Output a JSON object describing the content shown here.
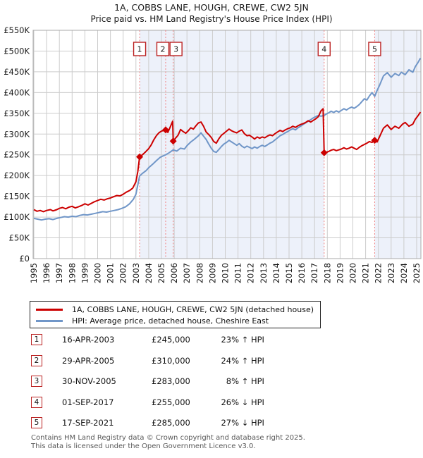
{
  "title": "1A, COBBS LANE, HOUGH, CREWE, CW2 5JN",
  "subtitle": "Price paid vs. HM Land Registry's House Price Index (HPI)",
  "chart_data": {
    "type": "line",
    "x_axis": {
      "start": 1995,
      "end": 2025,
      "tick_interval": 1,
      "labels_rotated": true
    },
    "y_axis": {
      "min": 0,
      "max": 550000,
      "tick_step": 50000,
      "labels": [
        "£0",
        "£50K",
        "£100K",
        "£150K",
        "£200K",
        "£250K",
        "£300K",
        "£350K",
        "£400K",
        "£450K",
        "£500K",
        "£550K"
      ]
    },
    "grid": true,
    "colors": {
      "property": "#cc0000",
      "hpi": "#7096c8",
      "shade": "#edf1fa",
      "grid": "#cccccc",
      "border": "#aaaaaa",
      "sale_line": "#f08080",
      "marker_box_border": "#bb2222"
    },
    "shaded_spans": [
      [
        2003.29,
        2017.75
      ],
      [
        2021.71,
        2025.3
      ]
    ],
    "sales": [
      {
        "n": "1",
        "year": 2003.29,
        "price_k": 245,
        "box_offset": 0
      },
      {
        "n": "2",
        "year": 2005.33,
        "price_k": 310,
        "box_offset": -4
      },
      {
        "n": "3",
        "year": 2005.92,
        "price_k": 283,
        "box_offset": 4
      },
      {
        "n": "4",
        "year": 2017.75,
        "price_k": 255,
        "box_offset": 0
      },
      {
        "n": "5",
        "year": 2021.71,
        "price_k": 285,
        "box_offset": 0
      }
    ],
    "series": [
      {
        "name": "price-paid",
        "legend": "1A, COBBS LANE, HOUGH, CREWE, CW2 5JN (detached house)",
        "color_key": "property",
        "points": [
          [
            1995.0,
            118
          ],
          [
            1995.25,
            114
          ],
          [
            1995.5,
            116
          ],
          [
            1995.75,
            113
          ],
          [
            1996.0,
            116
          ],
          [
            1996.3,
            118
          ],
          [
            1996.5,
            115
          ],
          [
            1996.8,
            118
          ],
          [
            1997.0,
            121
          ],
          [
            1997.25,
            123
          ],
          [
            1997.5,
            120
          ],
          [
            1997.75,
            124
          ],
          [
            1998.0,
            126
          ],
          [
            1998.25,
            122
          ],
          [
            1998.5,
            125
          ],
          [
            1998.75,
            128
          ],
          [
            1999.0,
            132
          ],
          [
            1999.25,
            129
          ],
          [
            1999.5,
            133
          ],
          [
            1999.75,
            137
          ],
          [
            2000.0,
            140
          ],
          [
            2000.25,
            143
          ],
          [
            2000.5,
            141
          ],
          [
            2000.75,
            144
          ],
          [
            2001.0,
            146
          ],
          [
            2001.25,
            149
          ],
          [
            2001.5,
            152
          ],
          [
            2001.75,
            151
          ],
          [
            2002.0,
            155
          ],
          [
            2002.25,
            160
          ],
          [
            2002.5,
            164
          ],
          [
            2002.75,
            170
          ],
          [
            2003.0,
            185
          ],
          [
            2003.15,
            210
          ],
          [
            2003.29,
            245
          ],
          [
            2003.5,
            250
          ],
          [
            2003.75,
            257
          ],
          [
            2004.0,
            265
          ],
          [
            2004.2,
            274
          ],
          [
            2004.4,
            286
          ],
          [
            2004.6,
            296
          ],
          [
            2004.8,
            303
          ],
          [
            2005.0,
            307
          ],
          [
            2005.33,
            310
          ],
          [
            2005.5,
            304
          ],
          [
            2005.7,
            318
          ],
          [
            2005.88,
            331
          ],
          [
            2005.92,
            283
          ],
          [
            2006.1,
            290
          ],
          [
            2006.3,
            297
          ],
          [
            2006.5,
            311
          ],
          [
            2006.7,
            306
          ],
          [
            2006.9,
            302
          ],
          [
            2007.1,
            308
          ],
          [
            2007.3,
            315
          ],
          [
            2007.5,
            312
          ],
          [
            2007.7,
            320
          ],
          [
            2007.9,
            327
          ],
          [
            2008.1,
            329
          ],
          [
            2008.3,
            319
          ],
          [
            2008.5,
            305
          ],
          [
            2008.7,
            299
          ],
          [
            2008.9,
            292
          ],
          [
            2009.1,
            282
          ],
          [
            2009.3,
            278
          ],
          [
            2009.5,
            289
          ],
          [
            2009.7,
            297
          ],
          [
            2009.9,
            302
          ],
          [
            2010.1,
            307
          ],
          [
            2010.3,
            312
          ],
          [
            2010.5,
            308
          ],
          [
            2010.7,
            305
          ],
          [
            2010.9,
            303
          ],
          [
            2011.1,
            307
          ],
          [
            2011.3,
            310
          ],
          [
            2011.5,
            301
          ],
          [
            2011.7,
            296
          ],
          [
            2011.9,
            297
          ],
          [
            2012.1,
            293
          ],
          [
            2012.3,
            288
          ],
          [
            2012.5,
            293
          ],
          [
            2012.7,
            290
          ],
          [
            2012.9,
            293
          ],
          [
            2013.1,
            291
          ],
          [
            2013.3,
            295
          ],
          [
            2013.5,
            298
          ],
          [
            2013.7,
            296
          ],
          [
            2013.9,
            301
          ],
          [
            2014.1,
            305
          ],
          [
            2014.3,
            309
          ],
          [
            2014.5,
            306
          ],
          [
            2014.7,
            310
          ],
          [
            2014.9,
            313
          ],
          [
            2015.1,
            315
          ],
          [
            2015.3,
            319
          ],
          [
            2015.5,
            316
          ],
          [
            2015.7,
            320
          ],
          [
            2015.9,
            323
          ],
          [
            2016.1,
            325
          ],
          [
            2016.3,
            328
          ],
          [
            2016.5,
            332
          ],
          [
            2016.7,
            329
          ],
          [
            2016.9,
            333
          ],
          [
            2017.1,
            337
          ],
          [
            2017.3,
            342
          ],
          [
            2017.5,
            356
          ],
          [
            2017.67,
            361
          ],
          [
            2017.75,
            255
          ],
          [
            2017.9,
            256
          ],
          [
            2018.1,
            258
          ],
          [
            2018.3,
            261
          ],
          [
            2018.5,
            263
          ],
          [
            2018.7,
            260
          ],
          [
            2018.9,
            262
          ],
          [
            2019.1,
            264
          ],
          [
            2019.3,
            267
          ],
          [
            2019.5,
            264
          ],
          [
            2019.7,
            266
          ],
          [
            2019.9,
            269
          ],
          [
            2020.1,
            266
          ],
          [
            2020.3,
            263
          ],
          [
            2020.5,
            268
          ],
          [
            2020.7,
            272
          ],
          [
            2020.9,
            275
          ],
          [
            2021.1,
            278
          ],
          [
            2021.3,
            282
          ],
          [
            2021.5,
            280
          ],
          [
            2021.71,
            285
          ],
          [
            2021.9,
            281
          ],
          [
            2022.1,
            294
          ],
          [
            2022.4,
            314
          ],
          [
            2022.7,
            322
          ],
          [
            2023.0,
            311
          ],
          [
            2023.3,
            319
          ],
          [
            2023.6,
            314
          ],
          [
            2023.9,
            324
          ],
          [
            2024.1,
            328
          ],
          [
            2024.4,
            319
          ],
          [
            2024.7,
            324
          ],
          [
            2024.9,
            336
          ],
          [
            2025.1,
            344
          ],
          [
            2025.3,
            353
          ]
        ]
      },
      {
        "name": "hpi",
        "legend": "HPI: Average price, detached house, Cheshire East",
        "color_key": "hpi",
        "points": [
          [
            1995.0,
            97
          ],
          [
            1995.3,
            95
          ],
          [
            1995.6,
            93
          ],
          [
            1995.9,
            95
          ],
          [
            1996.2,
            96
          ],
          [
            1996.5,
            94
          ],
          [
            1996.8,
            97
          ],
          [
            1997.1,
            99
          ],
          [
            1997.4,
            101
          ],
          [
            1997.7,
            100
          ],
          [
            1998.0,
            102
          ],
          [
            1998.3,
            101
          ],
          [
            1998.6,
            104
          ],
          [
            1998.9,
            106
          ],
          [
            1999.2,
            105
          ],
          [
            1999.5,
            107
          ],
          [
            1999.8,
            109
          ],
          [
            2000.1,
            111
          ],
          [
            2000.4,
            113
          ],
          [
            2000.7,
            112
          ],
          [
            2001.0,
            114
          ],
          [
            2001.3,
            116
          ],
          [
            2001.6,
            118
          ],
          [
            2001.9,
            121
          ],
          [
            2002.2,
            125
          ],
          [
            2002.5,
            132
          ],
          [
            2002.8,
            143
          ],
          [
            2003.0,
            155
          ],
          [
            2003.29,
            199
          ],
          [
            2003.5,
            205
          ],
          [
            2003.8,
            212
          ],
          [
            2004.0,
            219
          ],
          [
            2004.3,
            227
          ],
          [
            2004.6,
            236
          ],
          [
            2004.9,
            244
          ],
          [
            2005.1,
            247
          ],
          [
            2005.33,
            250
          ],
          [
            2005.6,
            255
          ],
          [
            2005.92,
            262
          ],
          [
            2006.2,
            259
          ],
          [
            2006.5,
            266
          ],
          [
            2006.8,
            264
          ],
          [
            2007.0,
            272
          ],
          [
            2007.3,
            281
          ],
          [
            2007.6,
            288
          ],
          [
            2007.9,
            296
          ],
          [
            2008.1,
            303
          ],
          [
            2008.3,
            295
          ],
          [
            2008.5,
            287
          ],
          [
            2008.7,
            276
          ],
          [
            2008.9,
            266
          ],
          [
            2009.1,
            258
          ],
          [
            2009.3,
            256
          ],
          [
            2009.5,
            263
          ],
          [
            2009.7,
            270
          ],
          [
            2009.9,
            276
          ],
          [
            2010.1,
            280
          ],
          [
            2010.3,
            285
          ],
          [
            2010.5,
            281
          ],
          [
            2010.7,
            277
          ],
          [
            2010.9,
            273
          ],
          [
            2011.1,
            277
          ],
          [
            2011.3,
            271
          ],
          [
            2011.5,
            267
          ],
          [
            2011.7,
            271
          ],
          [
            2011.9,
            268
          ],
          [
            2012.1,
            265
          ],
          [
            2012.3,
            269
          ],
          [
            2012.5,
            266
          ],
          [
            2012.7,
            270
          ],
          [
            2012.9,
            273
          ],
          [
            2013.1,
            270
          ],
          [
            2013.3,
            274
          ],
          [
            2013.5,
            278
          ],
          [
            2013.7,
            281
          ],
          [
            2013.9,
            286
          ],
          [
            2014.1,
            291
          ],
          [
            2014.3,
            296
          ],
          [
            2014.5,
            299
          ],
          [
            2014.7,
            303
          ],
          [
            2014.9,
            306
          ],
          [
            2015.1,
            310
          ],
          [
            2015.3,
            313
          ],
          [
            2015.5,
            310
          ],
          [
            2015.7,
            315
          ],
          [
            2015.9,
            319
          ],
          [
            2016.1,
            323
          ],
          [
            2016.3,
            327
          ],
          [
            2016.5,
            331
          ],
          [
            2016.7,
            335
          ],
          [
            2016.9,
            339
          ],
          [
            2017.1,
            342
          ],
          [
            2017.3,
            345
          ],
          [
            2017.5,
            343
          ],
          [
            2017.75,
            345
          ],
          [
            2017.9,
            348
          ],
          [
            2018.1,
            351
          ],
          [
            2018.3,
            355
          ],
          [
            2018.5,
            352
          ],
          [
            2018.7,
            356
          ],
          [
            2018.9,
            353
          ],
          [
            2019.1,
            357
          ],
          [
            2019.3,
            361
          ],
          [
            2019.5,
            358
          ],
          [
            2019.7,
            362
          ],
          [
            2019.9,
            365
          ],
          [
            2020.1,
            362
          ],
          [
            2020.3,
            366
          ],
          [
            2020.5,
            371
          ],
          [
            2020.7,
            378
          ],
          [
            2020.9,
            385
          ],
          [
            2021.1,
            382
          ],
          [
            2021.3,
            392
          ],
          [
            2021.5,
            400
          ],
          [
            2021.71,
            391
          ],
          [
            2021.9,
            405
          ],
          [
            2022.1,
            418
          ],
          [
            2022.4,
            440
          ],
          [
            2022.7,
            448
          ],
          [
            2023.0,
            437
          ],
          [
            2023.3,
            446
          ],
          [
            2023.6,
            441
          ],
          [
            2023.8,
            449
          ],
          [
            2024.1,
            443
          ],
          [
            2024.4,
            455
          ],
          [
            2024.7,
            449
          ],
          [
            2024.9,
            463
          ],
          [
            2025.1,
            472
          ],
          [
            2025.3,
            483
          ]
        ]
      }
    ]
  },
  "legend": {
    "entries": [
      {
        "label": "1A, COBBS LANE, HOUGH, CREWE, CW2 5JN (detached house)"
      },
      {
        "label": "HPI: Average price, detached house, Cheshire East"
      }
    ]
  },
  "table": {
    "rows": [
      {
        "num": "1",
        "date": "16-APR-2003",
        "price": "£245,000",
        "pct": "23%",
        "dir": "↑",
        "ref": "HPI"
      },
      {
        "num": "2",
        "date": "29-APR-2005",
        "price": "£310,000",
        "pct": "24%",
        "dir": "↑",
        "ref": "HPI"
      },
      {
        "num": "3",
        "date": "30-NOV-2005",
        "price": "£283,000",
        "pct": "8%",
        "dir": "↑",
        "ref": "HPI"
      },
      {
        "num": "4",
        "date": "01-SEP-2017",
        "price": "£255,000",
        "pct": "26%",
        "dir": "↓",
        "ref": "HPI"
      },
      {
        "num": "5",
        "date": "17-SEP-2021",
        "price": "£285,000",
        "pct": "27%",
        "dir": "↓",
        "ref": "HPI"
      }
    ]
  },
  "footer": {
    "line1": "Contains HM Land Registry data © Crown copyright and database right 2025.",
    "line2": "This data is licensed under the Open Government Licence v3.0."
  }
}
